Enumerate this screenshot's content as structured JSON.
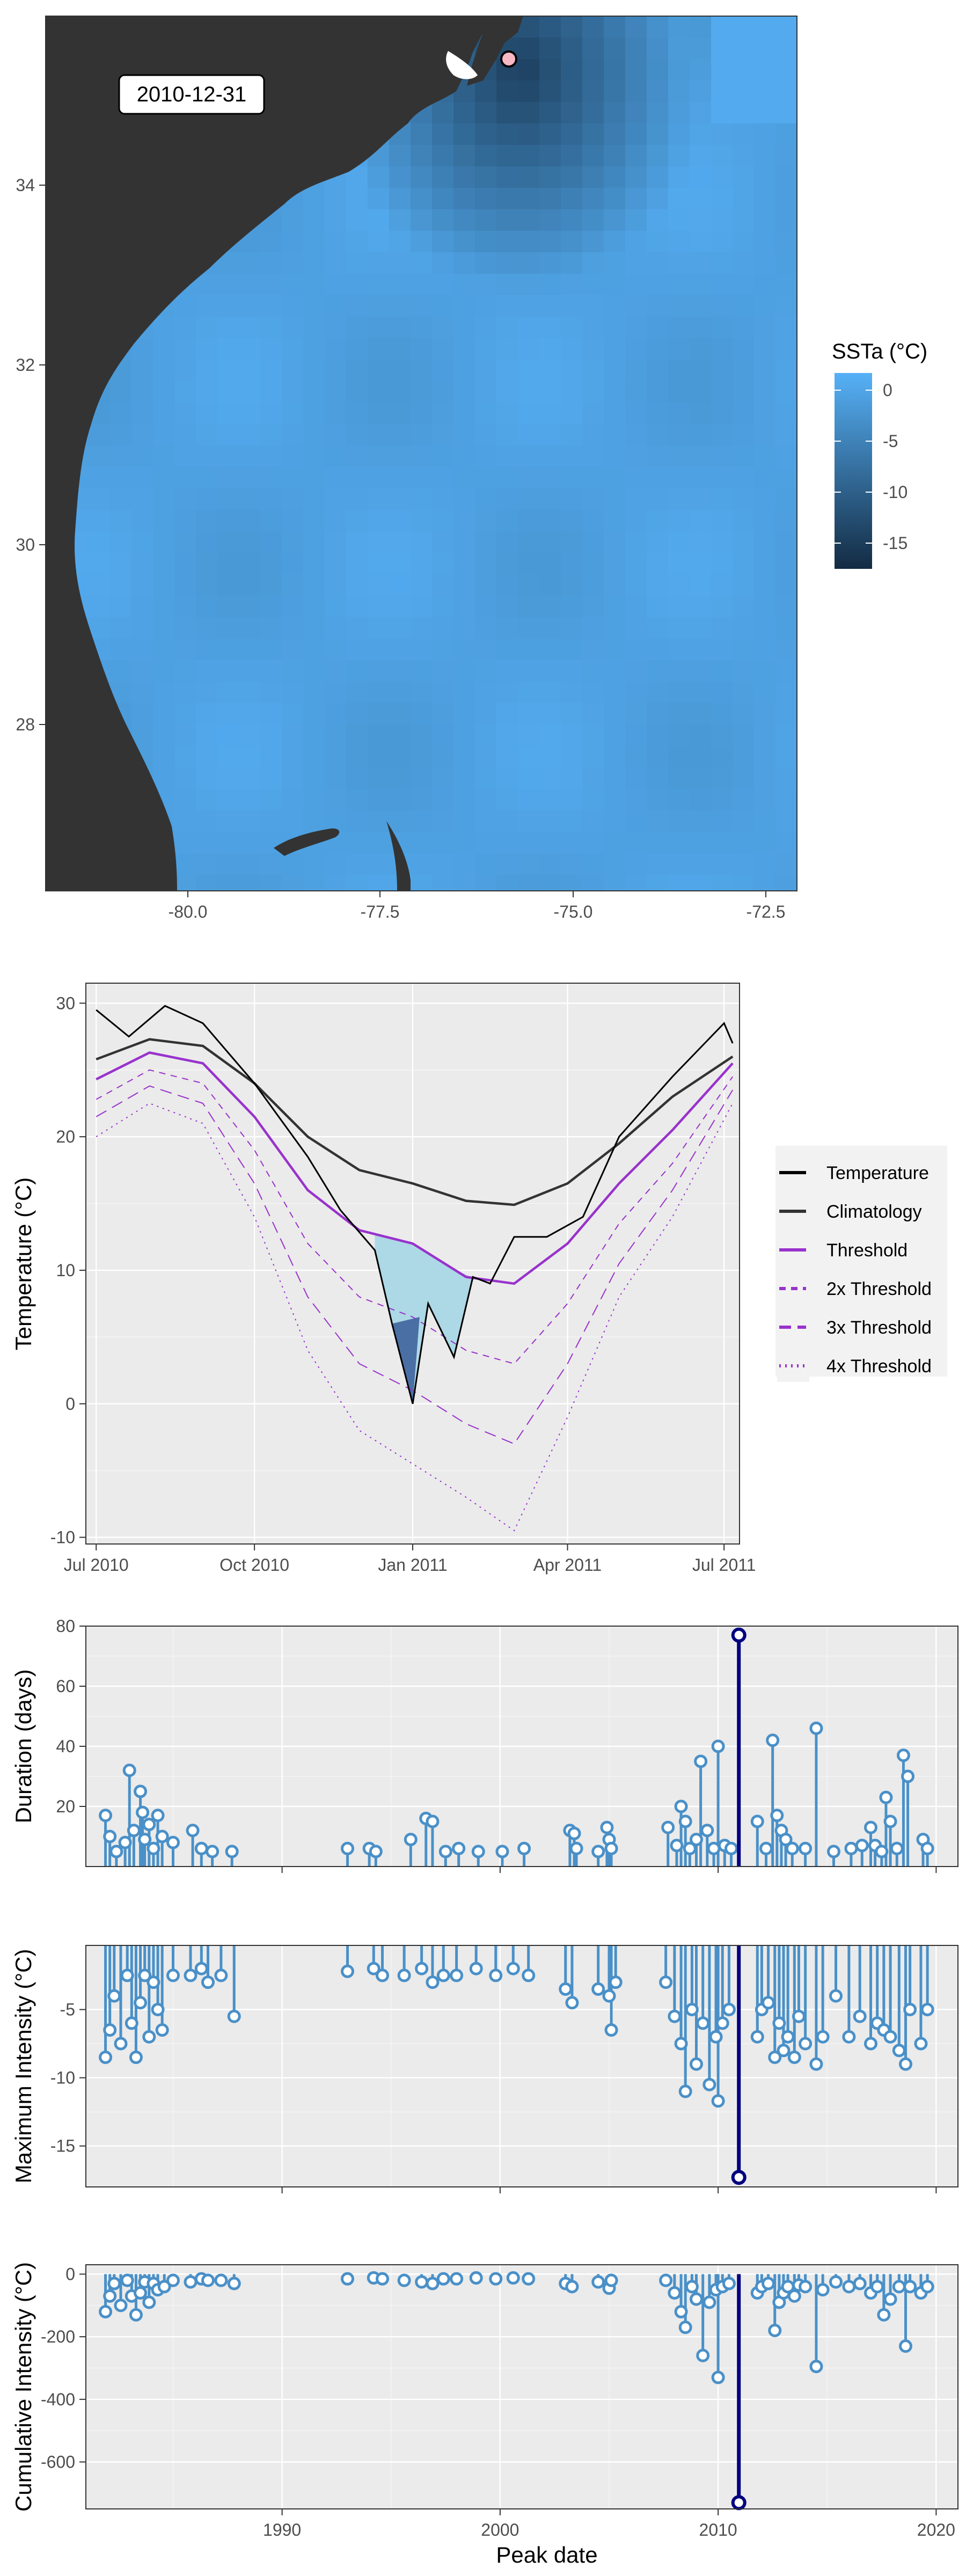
{
  "map": {
    "date_label": "2010-12-31",
    "x_ticks": [
      "-80.0",
      "-77.5",
      "-75.0",
      "-72.5"
    ],
    "y_ticks": [
      "34",
      "32",
      "30",
      "28"
    ],
    "legend": {
      "title": "SSTa (°C)",
      "labels": [
        "0",
        "-5",
        "-10",
        "-15"
      ]
    },
    "colors": {
      "land": "#333333",
      "ocean_light": "#56B1F7",
      "ocean_dark": "#132B43",
      "marker": "#F7B7C3"
    }
  },
  "chart_data": [
    {
      "type": "line",
      "ylabel": "Temperature (°C)",
      "x_ticks": [
        "Jul 2010",
        "Oct 2010",
        "Jan 2011",
        "Apr 2011",
        "Jul 2011"
      ],
      "y_ticks": [
        "30",
        "20",
        "10",
        "0",
        "-10"
      ],
      "xlim": [
        "2010-06-25",
        "2011-07-10"
      ],
      "ylim": [
        -10.5,
        31.5
      ],
      "series": [
        {
          "name": "Temperature",
          "color": "#000000",
          "style": "solid",
          "x": [
            "2010-07-01",
            "2010-07-20",
            "2010-08-10",
            "2010-09-01",
            "2010-10-01",
            "2010-11-01",
            "2010-11-20",
            "2010-12-10",
            "2010-12-20",
            "2011-01-01",
            "2011-01-10",
            "2011-01-25",
            "2011-02-05",
            "2011-02-15",
            "2011-03-01",
            "2011-03-20",
            "2011-04-10",
            "2011-05-01",
            "2011-06-01",
            "2011-07-01",
            "2011-07-06"
          ],
          "values": [
            29.5,
            27.5,
            29.8,
            28.5,
            24,
            18.5,
            14.5,
            11.5,
            6,
            0,
            7.5,
            3.5,
            9.5,
            9,
            12.5,
            12.5,
            14,
            20,
            24.5,
            28.5,
            27
          ]
        },
        {
          "name": "Climatology",
          "color": "#333333",
          "style": "solid",
          "x": [
            "2010-07-01",
            "2010-08-01",
            "2010-09-01",
            "2010-10-01",
            "2010-11-01",
            "2010-12-01",
            "2011-01-01",
            "2011-02-01",
            "2011-03-01",
            "2011-04-01",
            "2011-05-01",
            "2011-06-01",
            "2011-07-06"
          ],
          "values": [
            25.8,
            27.3,
            26.8,
            24,
            20,
            17.5,
            16.5,
            15.2,
            14.9,
            16.5,
            19.5,
            23,
            26
          ]
        },
        {
          "name": "Threshold",
          "color": "#9932CC",
          "style": "solid",
          "x": [
            "2010-07-01",
            "2010-08-01",
            "2010-09-01",
            "2010-10-01",
            "2010-11-01",
            "2010-12-01",
            "2011-01-01",
            "2011-02-01",
            "2011-03-01",
            "2011-04-01",
            "2011-05-01",
            "2011-06-01",
            "2011-07-06"
          ],
          "values": [
            24.3,
            26.3,
            25.5,
            21.5,
            16,
            13,
            12,
            9.5,
            9,
            12,
            16.5,
            20.5,
            25.5
          ]
        },
        {
          "name": "2x Threshold",
          "color": "#9932CC",
          "style": "dashed",
          "x": [
            "2010-07-01",
            "2010-08-01",
            "2010-09-01",
            "2010-10-01",
            "2010-11-01",
            "2010-12-01",
            "2011-01-01",
            "2011-02-01",
            "2011-03-01",
            "2011-04-01",
            "2011-05-01",
            "2011-06-01",
            "2011-07-06"
          ],
          "values": [
            22.8,
            25,
            24,
            19,
            12,
            8,
            6.5,
            4,
            3,
            7.5,
            13.5,
            18,
            24.5
          ]
        },
        {
          "name": "3x Threshold",
          "color": "#9932CC",
          "style": "longdash",
          "x": [
            "2010-07-01",
            "2010-08-01",
            "2010-09-01",
            "2010-10-01",
            "2010-11-01",
            "2010-12-01",
            "2011-01-01",
            "2011-02-01",
            "2011-03-01",
            "2011-04-01",
            "2011-05-01",
            "2011-06-01",
            "2011-07-06"
          ],
          "values": [
            21.5,
            23.8,
            22.5,
            16.5,
            8,
            3,
            1,
            -1.5,
            -3,
            3,
            10.5,
            16,
            23.5
          ]
        },
        {
          "name": "4x Threshold",
          "color": "#9932CC",
          "style": "dotted",
          "x": [
            "2010-07-01",
            "2010-08-01",
            "2010-09-01",
            "2010-10-01",
            "2010-11-01",
            "2010-12-01",
            "2011-01-01",
            "2011-02-01",
            "2011-03-01",
            "2011-04-01",
            "2011-05-01",
            "2011-06-01",
            "2011-07-06"
          ],
          "values": [
            20,
            22.5,
            21,
            14,
            4,
            -2,
            -4.5,
            -7,
            -9.5,
            -1,
            8,
            14,
            22.5
          ]
        }
      ]
    },
    {
      "type": "scatter",
      "ylabel": "Duration (days)",
      "y_ticks": [
        "80",
        "60",
        "40",
        "20"
      ],
      "ylim": [
        0,
        80
      ],
      "xlim": [
        1981,
        2021
      ],
      "baseline": 0,
      "points": [
        [
          1981.9,
          17
        ],
        [
          1982.1,
          10
        ],
        [
          1982.4,
          5
        ],
        [
          1982.8,
          8
        ],
        [
          1983.0,
          32
        ],
        [
          1983.2,
          12
        ],
        [
          1983.5,
          25
        ],
        [
          1983.6,
          18
        ],
        [
          1983.7,
          9
        ],
        [
          1983.9,
          14
        ],
        [
          1984.1,
          6
        ],
        [
          1984.3,
          17
        ],
        [
          1984.5,
          10
        ],
        [
          1985.0,
          8
        ],
        [
          1985.9,
          12
        ],
        [
          1986.3,
          6
        ],
        [
          1986.8,
          5
        ],
        [
          1987.7,
          5
        ],
        [
          1993.0,
          6
        ],
        [
          1994.0,
          6
        ],
        [
          1994.3,
          5
        ],
        [
          1995.9,
          9
        ],
        [
          1996.6,
          16
        ],
        [
          1996.9,
          15
        ],
        [
          1997.5,
          5
        ],
        [
          1998.1,
          6
        ],
        [
          1999.0,
          5
        ],
        [
          2000.1,
          5
        ],
        [
          2001.1,
          6
        ],
        [
          2003.2,
          12
        ],
        [
          2003.4,
          11
        ],
        [
          2003.5,
          6
        ],
        [
          2004.5,
          5
        ],
        [
          2004.9,
          13
        ],
        [
          2005.0,
          9
        ],
        [
          2005.1,
          6
        ],
        [
          2007.7,
          13
        ],
        [
          2008.1,
          7
        ],
        [
          2008.3,
          20
        ],
        [
          2008.5,
          15
        ],
        [
          2008.7,
          6
        ],
        [
          2009.0,
          9
        ],
        [
          2009.2,
          35
        ],
        [
          2009.5,
          12
        ],
        [
          2009.8,
          6
        ],
        [
          2010.0,
          40
        ],
        [
          2010.3,
          7
        ],
        [
          2010.6,
          6
        ],
        [
          2010.95,
          77
        ],
        [
          2011.8,
          15
        ],
        [
          2012.2,
          6
        ],
        [
          2012.5,
          42
        ],
        [
          2012.7,
          17
        ],
        [
          2012.9,
          12
        ],
        [
          2013.1,
          9
        ],
        [
          2013.4,
          6
        ],
        [
          2014.0,
          6
        ],
        [
          2014.5,
          46
        ],
        [
          2015.3,
          5
        ],
        [
          2016.1,
          6
        ],
        [
          2016.6,
          7
        ],
        [
          2017.0,
          13
        ],
        [
          2017.2,
          7
        ],
        [
          2017.5,
          5
        ],
        [
          2017.7,
          23
        ],
        [
          2017.9,
          15
        ],
        [
          2018.2,
          6
        ],
        [
          2018.5,
          37
        ],
        [
          2018.7,
          30
        ],
        [
          2019.4,
          9
        ],
        [
          2019.6,
          6
        ]
      ],
      "highlight": [
        2010.95,
        77
      ]
    },
    {
      "type": "scatter",
      "ylabel": "Maximum Intensity (°C)",
      "y_ticks": [
        "-5",
        "-10",
        "-15"
      ],
      "ylim": [
        -18,
        -0.3
      ],
      "xlim": [
        1981,
        2021
      ],
      "baseline": -0.3,
      "points": [
        [
          1981.9,
          -8.5
        ],
        [
          1982.1,
          -6.5
        ],
        [
          1982.3,
          -4
        ],
        [
          1982.6,
          -7.5
        ],
        [
          1982.9,
          -2.5
        ],
        [
          1983.1,
          -6
        ],
        [
          1983.3,
          -8.5
        ],
        [
          1983.5,
          -4.5
        ],
        [
          1983.7,
          -2.5
        ],
        [
          1983.9,
          -7
        ],
        [
          1984.1,
          -3
        ],
        [
          1984.3,
          -5
        ],
        [
          1984.5,
          -6.5
        ],
        [
          1985.0,
          -2.5
        ],
        [
          1985.8,
          -2.5
        ],
        [
          1986.3,
          -2
        ],
        [
          1986.6,
          -3
        ],
        [
          1987.2,
          -2.5
        ],
        [
          1987.8,
          -5.5
        ],
        [
          1993.0,
          -2.2
        ],
        [
          1994.2,
          -2
        ],
        [
          1994.6,
          -2.5
        ],
        [
          1995.6,
          -2.5
        ],
        [
          1996.4,
          -2
        ],
        [
          1996.9,
          -3
        ],
        [
          1997.4,
          -2.5
        ],
        [
          1998.0,
          -2.5
        ],
        [
          1998.9,
          -2
        ],
        [
          1999.8,
          -2.5
        ],
        [
          2000.6,
          -2
        ],
        [
          2001.3,
          -2.5
        ],
        [
          2003.0,
          -3.5
        ],
        [
          2003.3,
          -4.5
        ],
        [
          2004.5,
          -3.5
        ],
        [
          2005.0,
          -4
        ],
        [
          2005.1,
          -6.5
        ],
        [
          2005.3,
          -3
        ],
        [
          2007.6,
          -3
        ],
        [
          2008.0,
          -5.5
        ],
        [
          2008.3,
          -7.5
        ],
        [
          2008.5,
          -11
        ],
        [
          2008.8,
          -5
        ],
        [
          2009.0,
          -9
        ],
        [
          2009.3,
          -6
        ],
        [
          2009.6,
          -10.5
        ],
        [
          2009.9,
          -7
        ],
        [
          2010.0,
          -11.7
        ],
        [
          2010.2,
          -6
        ],
        [
          2010.5,
          -5
        ],
        [
          2010.95,
          -17.3
        ],
        [
          2011.8,
          -7
        ],
        [
          2012.0,
          -5
        ],
        [
          2012.3,
          -4.5
        ],
        [
          2012.6,
          -8.5
        ],
        [
          2012.8,
          -6
        ],
        [
          2013.0,
          -8
        ],
        [
          2013.2,
          -7
        ],
        [
          2013.5,
          -8.5
        ],
        [
          2013.7,
          -5.5
        ],
        [
          2014.0,
          -7.5
        ],
        [
          2014.5,
          -9
        ],
        [
          2014.8,
          -7
        ],
        [
          2015.4,
          -4
        ],
        [
          2016.0,
          -7
        ],
        [
          2016.5,
          -5.5
        ],
        [
          2017.0,
          -7.5
        ],
        [
          2017.3,
          -6
        ],
        [
          2017.6,
          -6.5
        ],
        [
          2017.9,
          -7
        ],
        [
          2018.3,
          -8
        ],
        [
          2018.6,
          -9
        ],
        [
          2018.8,
          -5
        ],
        [
          2019.3,
          -7.5
        ],
        [
          2019.6,
          -5
        ]
      ],
      "highlight": [
        2010.95,
        -17.3
      ]
    },
    {
      "type": "scatter",
      "ylabel": "Cumulative Intensity (°C)",
      "xlabel": "Peak date",
      "x_ticks": [
        "1990",
        "2000",
        "2010",
        "2020"
      ],
      "y_ticks": [
        "0",
        "-200",
        "-400",
        "-600"
      ],
      "ylim": [
        -750,
        30
      ],
      "xlim": [
        1981,
        2021
      ],
      "baseline": 0,
      "points": [
        [
          1981.9,
          -120
        ],
        [
          1982.1,
          -70
        ],
        [
          1982.3,
          -30
        ],
        [
          1982.6,
          -100
        ],
        [
          1982.9,
          -20
        ],
        [
          1983.1,
          -70
        ],
        [
          1983.3,
          -130
        ],
        [
          1983.5,
          -60
        ],
        [
          1983.7,
          -25
        ],
        [
          1983.9,
          -90
        ],
        [
          1984.1,
          -30
        ],
        [
          1984.3,
          -50
        ],
        [
          1984.6,
          -40
        ],
        [
          1985.0,
          -20
        ],
        [
          1985.8,
          -25
        ],
        [
          1986.3,
          -15
        ],
        [
          1986.6,
          -20
        ],
        [
          1987.2,
          -20
        ],
        [
          1987.8,
          -30
        ],
        [
          1993.0,
          -15
        ],
        [
          1994.2,
          -12
        ],
        [
          1994.6,
          -15
        ],
        [
          1995.6,
          -20
        ],
        [
          1996.4,
          -25
        ],
        [
          1996.9,
          -30
        ],
        [
          1997.4,
          -15
        ],
        [
          1998.0,
          -15
        ],
        [
          1998.9,
          -12
        ],
        [
          1999.8,
          -15
        ],
        [
          2000.6,
          -12
        ],
        [
          2001.3,
          -15
        ],
        [
          2003.0,
          -30
        ],
        [
          2003.3,
          -40
        ],
        [
          2004.5,
          -25
        ],
        [
          2005.0,
          -45
        ],
        [
          2005.1,
          -20
        ],
        [
          2007.6,
          -20
        ],
        [
          2008.0,
          -60
        ],
        [
          2008.3,
          -120
        ],
        [
          2008.5,
          -170
        ],
        [
          2008.8,
          -40
        ],
        [
          2009.0,
          -80
        ],
        [
          2009.3,
          -260
        ],
        [
          2009.6,
          -90
        ],
        [
          2009.9,
          -50
        ],
        [
          2010.0,
          -330
        ],
        [
          2010.2,
          -40
        ],
        [
          2010.5,
          -30
        ],
        [
          2010.95,
          -730
        ],
        [
          2011.8,
          -60
        ],
        [
          2012.0,
          -40
        ],
        [
          2012.3,
          -30
        ],
        [
          2012.6,
          -180
        ],
        [
          2012.8,
          -90
        ],
        [
          2013.0,
          -60
        ],
        [
          2013.2,
          -40
        ],
        [
          2013.5,
          -70
        ],
        [
          2013.7,
          -35
        ],
        [
          2014.0,
          -40
        ],
        [
          2014.5,
          -295
        ],
        [
          2014.8,
          -50
        ],
        [
          2015.4,
          -25
        ],
        [
          2016.0,
          -40
        ],
        [
          2016.5,
          -30
        ],
        [
          2017.0,
          -60
        ],
        [
          2017.3,
          -40
        ],
        [
          2017.6,
          -130
        ],
        [
          2017.9,
          -80
        ],
        [
          2018.3,
          -40
        ],
        [
          2018.6,
          -230
        ],
        [
          2018.8,
          -40
        ],
        [
          2019.3,
          -60
        ],
        [
          2019.6,
          -40
        ]
      ],
      "highlight": [
        2010.95,
        -730
      ]
    }
  ],
  "legend2": {
    "items": [
      {
        "label": "Temperature",
        "color": "#000000",
        "style": "solid"
      },
      {
        "label": "Climatology",
        "color": "#333333",
        "style": "solid"
      },
      {
        "label": "Threshold",
        "color": "#9932CC",
        "style": "solid"
      },
      {
        "label": "2x Threshold",
        "color": "#9932CC",
        "style": "dashed"
      },
      {
        "label": "3x Threshold",
        "color": "#9932CC",
        "style": "longdash"
      },
      {
        "label": "4x Threshold",
        "color": "#9932CC",
        "style": "dotted"
      }
    ]
  },
  "style": {
    "panel_bg": "#EBEBEB",
    "grid": "#FFFFFF",
    "lolli": "#4A90C8",
    "highlight": "#000080",
    "fill_light": "#ADD8E6",
    "fill_dark": "#4A6FA5"
  }
}
